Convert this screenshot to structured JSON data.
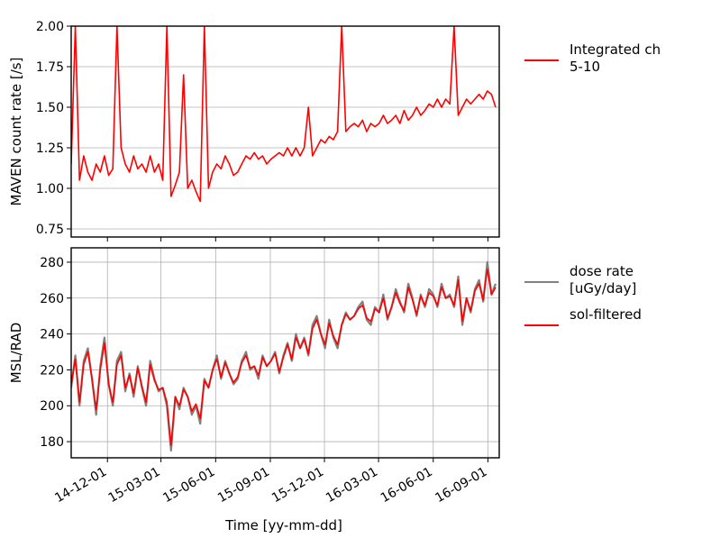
{
  "chart_data": [
    {
      "type": "line",
      "ylabel": "MAVEN count rate [/s]",
      "ylim": [
        0.7,
        2.0
      ],
      "yticks": [
        "2.00",
        "1.75",
        "1.50",
        "1.25",
        "1.00",
        "0.75"
      ],
      "ytick_values": [
        2.0,
        1.75,
        1.5,
        1.25,
        1.0,
        0.75
      ],
      "grid": "horizontal",
      "legend_position": "right",
      "series": [
        {
          "name": "Integrated ch\n 5-10",
          "legend_lines": [
            "Integrated ch",
            " 5-10"
          ],
          "color": "#ff0000",
          "x": [
            "2014-10-01",
            "2014-10-08",
            "2014-10-15",
            "2014-10-22",
            "2014-10-29",
            "2014-11-05",
            "2014-11-12",
            "2014-11-19",
            "2014-11-26",
            "2014-12-03",
            "2014-12-10",
            "2014-12-17",
            "2014-12-24",
            "2014-12-31",
            "2015-01-07",
            "2015-01-14",
            "2015-01-21",
            "2015-01-28",
            "2015-02-04",
            "2015-02-11",
            "2015-02-18",
            "2015-02-25",
            "2015-03-04",
            "2015-03-11",
            "2015-03-18",
            "2015-03-25",
            "2015-04-01",
            "2015-04-08",
            "2015-04-15",
            "2015-04-22",
            "2015-04-29",
            "2015-05-06",
            "2015-05-13",
            "2015-05-20",
            "2015-05-27",
            "2015-06-03",
            "2015-06-10",
            "2015-06-17",
            "2015-06-24",
            "2015-07-01",
            "2015-07-08",
            "2015-07-15",
            "2015-07-22",
            "2015-07-29",
            "2015-08-05",
            "2015-08-12",
            "2015-08-19",
            "2015-08-26",
            "2015-09-02",
            "2015-09-09",
            "2015-09-16",
            "2015-09-23",
            "2015-09-30",
            "2015-10-07",
            "2015-10-14",
            "2015-10-21",
            "2015-10-28",
            "2015-11-04",
            "2015-11-11",
            "2015-11-18",
            "2015-11-25",
            "2015-12-02",
            "2015-12-09",
            "2015-12-16",
            "2015-12-23",
            "2015-12-30",
            "2016-01-06",
            "2016-01-13",
            "2016-01-20",
            "2016-01-27",
            "2016-02-03",
            "2016-02-10",
            "2016-02-17",
            "2016-02-24",
            "2016-03-02",
            "2016-03-09",
            "2016-03-16",
            "2016-03-23",
            "2016-03-30",
            "2016-04-06",
            "2016-04-13",
            "2016-04-20",
            "2016-04-27",
            "2016-05-04",
            "2016-05-11",
            "2016-05-18",
            "2016-05-25",
            "2016-06-01",
            "2016-06-08",
            "2016-06-15",
            "2016-06-22",
            "2016-06-29",
            "2016-07-06",
            "2016-07-13",
            "2016-07-20",
            "2016-07-27",
            "2016-08-03",
            "2016-08-10",
            "2016-08-17",
            "2016-08-24",
            "2016-08-31",
            "2016-09-07",
            "2016-09-14"
          ],
          "values": [
            1.15,
            2.0,
            1.05,
            1.2,
            1.1,
            1.05,
            1.15,
            1.1,
            1.2,
            1.08,
            1.12,
            2.0,
            1.25,
            1.15,
            1.1,
            1.2,
            1.12,
            1.15,
            1.1,
            1.2,
            1.1,
            1.15,
            1.05,
            2.0,
            0.95,
            1.02,
            1.1,
            1.7,
            1.0,
            1.05,
            0.98,
            0.92,
            2.0,
            1.0,
            1.1,
            1.15,
            1.12,
            1.2,
            1.15,
            1.08,
            1.1,
            1.15,
            1.2,
            1.18,
            1.22,
            1.18,
            1.2,
            1.15,
            1.18,
            1.2,
            1.22,
            1.2,
            1.25,
            1.2,
            1.25,
            1.2,
            1.25,
            1.5,
            1.2,
            1.25,
            1.3,
            1.28,
            1.32,
            1.3,
            1.35,
            2.0,
            1.35,
            1.38,
            1.4,
            1.38,
            1.42,
            1.35,
            1.4,
            1.38,
            1.4,
            1.45,
            1.4,
            1.42,
            1.45,
            1.4,
            1.48,
            1.42,
            1.45,
            1.5,
            1.45,
            1.48,
            1.52,
            1.5,
            1.55,
            1.5,
            1.55,
            1.52,
            2.0,
            1.45,
            1.5,
            1.55,
            1.52,
            1.55,
            1.58,
            1.55,
            1.6,
            1.58,
            1.5
          ]
        }
      ]
    },
    {
      "type": "line",
      "ylabel": "MSL/RAD",
      "xlabel": "Time [yy-mm-dd]",
      "ylim": [
        171,
        288
      ],
      "yticks": [
        "280",
        "260",
        "240",
        "220",
        "200",
        "180"
      ],
      "ytick_values": [
        280,
        260,
        240,
        220,
        200,
        180
      ],
      "xticks": [
        "14-12-01",
        "15-03-01",
        "15-06-01",
        "15-09-01",
        "15-12-01",
        "16-03-01",
        "16-06-01",
        "16-09-01"
      ],
      "xtick_values": [
        "2014-12-01",
        "2015-03-01",
        "2015-06-01",
        "2015-09-01",
        "2015-12-01",
        "2016-03-01",
        "2016-06-01",
        "2016-09-01"
      ],
      "xlim": [
        "2014-10-01",
        "2016-09-20"
      ],
      "grid": "both",
      "legend_position": "right",
      "series": [
        {
          "name": "dose rate\n [uGy/day]",
          "legend_lines": [
            "dose rate",
            " [uGy/day]"
          ],
          "color": "#808080",
          "x": [
            "2014-10-01",
            "2014-10-08",
            "2014-10-15",
            "2014-10-22",
            "2014-10-29",
            "2014-11-05",
            "2014-11-12",
            "2014-11-19",
            "2014-11-26",
            "2014-12-03",
            "2014-12-10",
            "2014-12-17",
            "2014-12-24",
            "2014-12-31",
            "2015-01-07",
            "2015-01-14",
            "2015-01-21",
            "2015-01-28",
            "2015-02-04",
            "2015-02-11",
            "2015-02-18",
            "2015-02-25",
            "2015-03-04",
            "2015-03-11",
            "2015-03-18",
            "2015-03-25",
            "2015-04-01",
            "2015-04-08",
            "2015-04-15",
            "2015-04-22",
            "2015-04-29",
            "2015-05-06",
            "2015-05-13",
            "2015-05-20",
            "2015-05-27",
            "2015-06-03",
            "2015-06-10",
            "2015-06-17",
            "2015-06-24",
            "2015-07-01",
            "2015-07-08",
            "2015-07-15",
            "2015-07-22",
            "2015-07-29",
            "2015-08-05",
            "2015-08-12",
            "2015-08-19",
            "2015-08-26",
            "2015-09-02",
            "2015-09-09",
            "2015-09-16",
            "2015-09-23",
            "2015-09-30",
            "2015-10-07",
            "2015-10-14",
            "2015-10-21",
            "2015-10-28",
            "2015-11-04",
            "2015-11-11",
            "2015-11-18",
            "2015-11-25",
            "2015-12-02",
            "2015-12-09",
            "2015-12-16",
            "2015-12-23",
            "2015-12-30",
            "2016-01-06",
            "2016-01-13",
            "2016-01-20",
            "2016-01-27",
            "2016-02-03",
            "2016-02-10",
            "2016-02-17",
            "2016-02-24",
            "2016-03-02",
            "2016-03-09",
            "2016-03-16",
            "2016-03-23",
            "2016-03-30",
            "2016-04-06",
            "2016-04-13",
            "2016-04-20",
            "2016-04-27",
            "2016-05-04",
            "2016-05-11",
            "2016-05-18",
            "2016-05-25",
            "2016-06-01",
            "2016-06-08",
            "2016-06-15",
            "2016-06-22",
            "2016-06-29",
            "2016-07-06",
            "2016-07-13",
            "2016-07-20",
            "2016-07-27",
            "2016-08-03",
            "2016-08-10",
            "2016-08-17",
            "2016-08-24",
            "2016-08-31",
            "2016-09-07",
            "2016-09-14"
          ],
          "values": [
            210,
            228,
            200,
            225,
            232,
            215,
            195,
            222,
            238,
            212,
            200,
            225,
            230,
            208,
            218,
            205,
            222,
            210,
            200,
            225,
            215,
            208,
            210,
            200,
            175,
            205,
            198,
            210,
            205,
            195,
            200,
            190,
            215,
            210,
            220,
            228,
            215,
            225,
            218,
            212,
            215,
            225,
            230,
            220,
            222,
            215,
            228,
            222,
            225,
            230,
            218,
            228,
            235,
            225,
            240,
            232,
            238,
            228,
            245,
            250,
            240,
            232,
            248,
            238,
            232,
            245,
            252,
            248,
            250,
            255,
            258,
            248,
            245,
            255,
            252,
            262,
            248,
            255,
            265,
            258,
            252,
            268,
            260,
            250,
            262,
            255,
            265,
            262,
            255,
            268,
            260,
            262,
            255,
            272,
            245,
            260,
            252,
            265,
            270,
            258,
            280,
            262,
            268
          ]
        },
        {
          "name": "sol-filtered",
          "legend_lines": [
            "sol-filtered"
          ],
          "color": "#ff0000",
          "x": [
            "2014-10-01",
            "2014-10-08",
            "2014-10-15",
            "2014-10-22",
            "2014-10-29",
            "2014-11-05",
            "2014-11-12",
            "2014-11-19",
            "2014-11-26",
            "2014-12-03",
            "2014-12-10",
            "2014-12-17",
            "2014-12-24",
            "2014-12-31",
            "2015-01-07",
            "2015-01-14",
            "2015-01-21",
            "2015-01-28",
            "2015-02-04",
            "2015-02-11",
            "2015-02-18",
            "2015-02-25",
            "2015-03-04",
            "2015-03-11",
            "2015-03-18",
            "2015-03-25",
            "2015-04-01",
            "2015-04-08",
            "2015-04-15",
            "2015-04-22",
            "2015-04-29",
            "2015-05-06",
            "2015-05-13",
            "2015-05-20",
            "2015-05-27",
            "2015-06-03",
            "2015-06-10",
            "2015-06-17",
            "2015-06-24",
            "2015-07-01",
            "2015-07-08",
            "2015-07-15",
            "2015-07-22",
            "2015-07-29",
            "2015-08-05",
            "2015-08-12",
            "2015-08-19",
            "2015-08-26",
            "2015-09-02",
            "2015-09-09",
            "2015-09-16",
            "2015-09-23",
            "2015-09-30",
            "2015-10-07",
            "2015-10-14",
            "2015-10-21",
            "2015-10-28",
            "2015-11-04",
            "2015-11-11",
            "2015-11-18",
            "2015-11-25",
            "2015-12-02",
            "2015-12-09",
            "2015-12-16",
            "2015-12-23",
            "2015-12-30",
            "2016-01-06",
            "2016-01-13",
            "2016-01-20",
            "2016-01-27",
            "2016-02-03",
            "2016-02-10",
            "2016-02-17",
            "2016-02-24",
            "2016-03-02",
            "2016-03-09",
            "2016-03-16",
            "2016-03-23",
            "2016-03-30",
            "2016-04-06",
            "2016-04-13",
            "2016-04-20",
            "2016-04-27",
            "2016-05-04",
            "2016-05-11",
            "2016-05-18",
            "2016-05-25",
            "2016-06-01",
            "2016-06-08",
            "2016-06-15",
            "2016-06-22",
            "2016-06-29",
            "2016-07-06",
            "2016-07-13",
            "2016-07-20",
            "2016-07-27",
            "2016-08-03",
            "2016-08-10",
            "2016-08-17",
            "2016-08-24",
            "2016-08-31",
            "2016-09-07",
            "2016-09-14"
          ],
          "values": [
            212,
            226,
            202,
            223,
            230,
            215,
            198,
            220,
            235,
            212,
            202,
            223,
            228,
            210,
            217,
            207,
            221,
            211,
            202,
            223,
            214,
            209,
            210,
            202,
            178,
            205,
            200,
            209,
            205,
            197,
            201,
            193,
            214,
            210,
            220,
            226,
            216,
            224,
            218,
            213,
            216,
            224,
            228,
            221,
            222,
            217,
            227,
            222,
            225,
            229,
            219,
            227,
            234,
            226,
            238,
            232,
            237,
            229,
            243,
            248,
            240,
            234,
            246,
            239,
            234,
            245,
            251,
            248,
            250,
            254,
            256,
            249,
            247,
            254,
            252,
            260,
            249,
            255,
            263,
            257,
            253,
            266,
            259,
            251,
            261,
            256,
            263,
            261,
            256,
            266,
            260,
            261,
            256,
            270,
            247,
            260,
            253,
            264,
            268,
            259,
            276,
            262,
            266
          ]
        }
      ]
    }
  ]
}
